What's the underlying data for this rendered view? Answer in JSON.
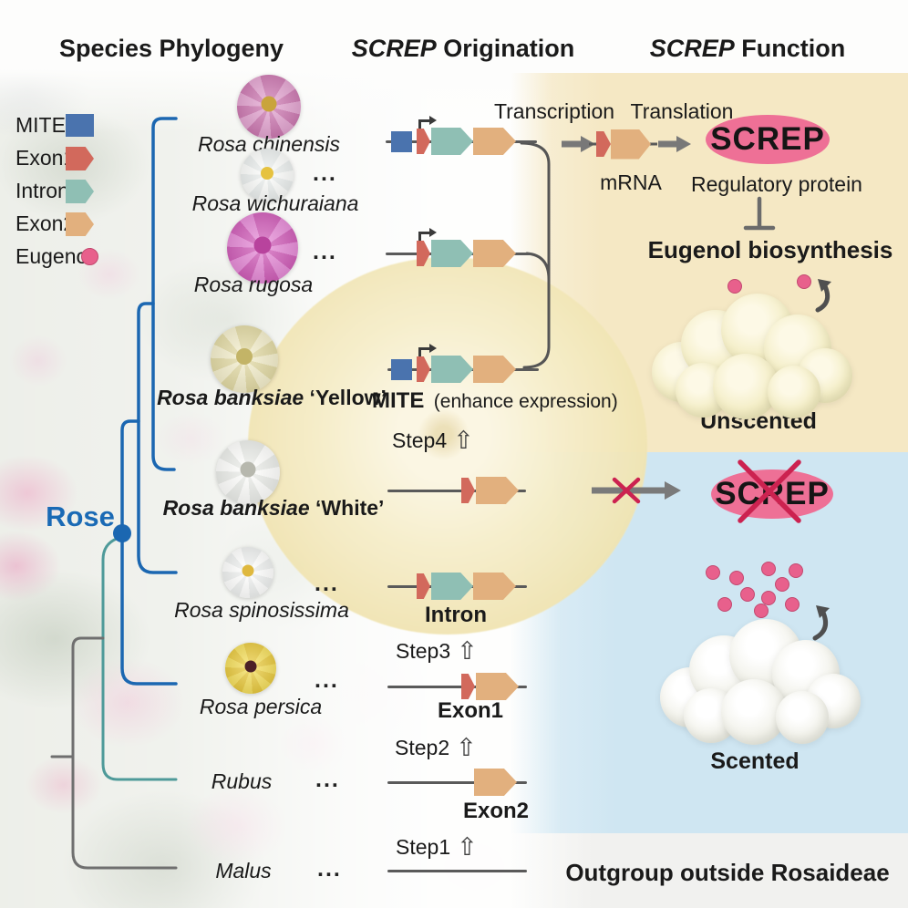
{
  "headers": {
    "phylogeny": "Species Phylogeny",
    "origination_gene": "SCREP",
    "origination_rest": " Origination",
    "function_gene": "SCREP",
    "function_rest": " Function"
  },
  "legend": [
    {
      "label": "MITE",
      "shape": "square",
      "color": "#4a73ae"
    },
    {
      "label": "Exon1",
      "shape": "pentagon",
      "color": "#d2695c"
    },
    {
      "label": "Intron",
      "shape": "pentagon",
      "color": "#8fbfb4"
    },
    {
      "label": "Exon2",
      "shape": "pentagon",
      "color": "#e2b07e"
    },
    {
      "label": "Eugenol",
      "shape": "circle",
      "color": "#e8608c"
    }
  ],
  "tree": {
    "clade_label": "Rose"
  },
  "species": [
    {
      "name": "Rosa chinensis",
      "cultivar": "",
      "emphasis": false,
      "ellipsis": false
    },
    {
      "name": "Rosa wichuraiana",
      "cultivar": "",
      "emphasis": false,
      "ellipsis": true
    },
    {
      "name": "Rosa rugosa",
      "cultivar": "",
      "emphasis": false,
      "ellipsis": true
    },
    {
      "name": "Rosa banksiae",
      "cultivar": "‘Yellow’",
      "emphasis": true,
      "ellipsis": false
    },
    {
      "name": "Rosa banksiae",
      "cultivar": "‘White’",
      "emphasis": true,
      "ellipsis": false
    },
    {
      "name": "Rosa spinosissima",
      "cultivar": "",
      "emphasis": false,
      "ellipsis": true
    },
    {
      "name": "Rosa persica",
      "cultivar": "",
      "emphasis": false,
      "ellipsis": true
    },
    {
      "name": "Rubus",
      "cultivar": "",
      "emphasis": false,
      "ellipsis": true
    },
    {
      "name": "Malus",
      "cultivar": "",
      "emphasis": false,
      "ellipsis": true
    }
  ],
  "gene_rows": [
    {
      "species": "Rosa chinensis",
      "segments": [
        "MITE",
        "promoter",
        "Exon1",
        "Intron",
        "Exon2"
      ]
    },
    {
      "species": "Rosa rugosa",
      "segments": [
        "promoter",
        "Exon1",
        "Intron",
        "Exon2"
      ]
    },
    {
      "species": "Rosa banksiae ‘Yellow’",
      "segments": [
        "MITE",
        "promoter",
        "Exon1",
        "Intron",
        "Exon2"
      ]
    },
    {
      "species": "Rosa banksiae ‘White’",
      "segments": [
        "Exon1",
        "Exon2"
      ]
    },
    {
      "species": "Rosa spinosissima",
      "segments": [
        "Exon1",
        "Intron",
        "Exon2"
      ]
    },
    {
      "species": "Rosa persica",
      "segments": [
        "Exon1",
        "Exon2"
      ]
    },
    {
      "species": "Rubus",
      "segments": [
        "Exon2"
      ]
    },
    {
      "species": "Malus",
      "segments": []
    }
  ],
  "origination": {
    "mite_label": "MITE",
    "mite_note": "(enhance expression)",
    "steps": [
      {
        "label": "Step4"
      },
      {
        "label": "Step3"
      },
      {
        "label": "Step2"
      },
      {
        "label": "Step1"
      }
    ],
    "gain_labels": [
      {
        "label": "Intron"
      },
      {
        "label": "Exon1"
      },
      {
        "label": "Exon2"
      }
    ]
  },
  "function_col": {
    "transcription": "Transcription",
    "translation": "Translation",
    "mrna": "mRNA",
    "protein_name": "SCREP",
    "protein_role": "Regulatory protein",
    "pathway": "Eugenol biosynthesis",
    "unscented": "Unscented",
    "scented": "Scented",
    "outgroup_note": "Outgroup outside Rosaideae",
    "eugenol_dots_unscented": 2,
    "eugenol_dots_scented": 10
  },
  "icons": {
    "up_arrow": "⇧",
    "ellipsis": "..."
  },
  "colors": {
    "mite": "#4a73ae",
    "exon1": "#d2695c",
    "intron": "#8fbfb4",
    "exon2": "#e2b07e",
    "eugenol": "#e8608c",
    "screp_ellipse": "#ee7096",
    "tree_blue": "#1b67b1",
    "tree_teal": "#4e9a99",
    "tree_gray": "#6f6f6f",
    "cross_red": "#cc2250",
    "rose_label_blue": "#1a6ab5",
    "panel_yellow": "#f5e8c4",
    "panel_blue": "#cfe6f2"
  }
}
